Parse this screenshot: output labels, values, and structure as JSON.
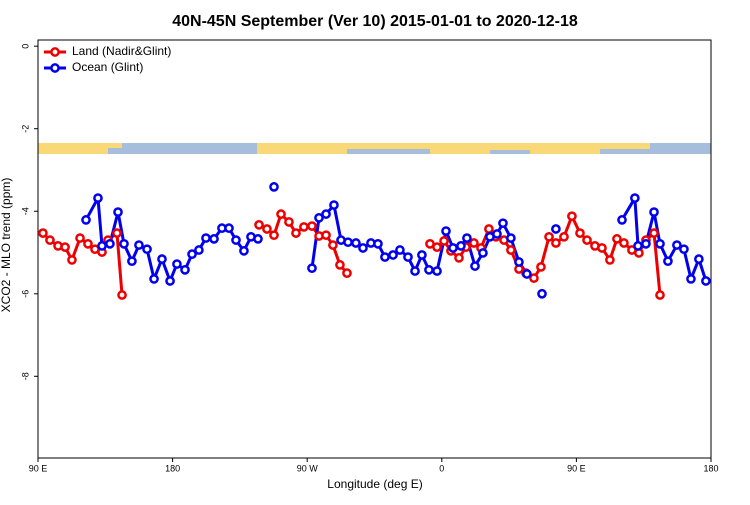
{
  "chart_data": {
    "type": "line",
    "title": "40N-45N September (Ver 10)   2015-01-01 to 2020-12-18",
    "x_label": "Longitude (deg E)",
    "y_label": "XCO2 - MLO trend (ppm)",
    "legend": "top-left",
    "xlim": [
      90,
      540
    ],
    "ylim": [
      -9.98,
      0.15
    ],
    "xticks": [
      {
        "value": 90,
        "label": "90 E"
      },
      {
        "value": 180,
        "label": "180"
      },
      {
        "value": 270,
        "label": "90 W"
      },
      {
        "value": 360,
        "label": "0"
      },
      {
        "value": 450,
        "label": "90 E"
      },
      {
        "value": 540,
        "label": "180"
      }
    ],
    "yticks": [
      0,
      -2,
      -4,
      -6,
      -8
    ],
    "series": [
      {
        "name": "Land (Nadir&Glint)",
        "color": "#ee0000",
        "x": [
          93.3,
          98.0,
          103.4,
          108.1,
          112.7,
          118.1,
          123.4,
          128.1,
          132.8,
          136.8,
          142.8,
          146.2,
          null,
          237.8,
          243.1,
          247.8,
          252.5,
          257.8,
          262.5,
          267.8,
          273.2,
          277.9,
          282.6,
          287.2,
          291.9,
          296.6,
          null,
          352.1,
          356.8,
          361.5,
          366.1,
          371.5,
          376.2,
          381.5,
          386.2,
          391.5,
          396.2,
          401.6,
          406.2,
          411.6,
          416.3,
          421.6,
          426.3,
          431.7,
          436.3,
          441.7,
          447.0,
          452.4,
          457.1,
          462.4,
          467.1,
          472.4,
          477.1,
          481.8,
          487.1,
          491.8,
          496.5,
          501.9,
          505.9
        ],
        "values": [
          -4.53,
          -4.7,
          -4.84,
          -4.87,
          -5.18,
          -4.65,
          -4.79,
          -4.92,
          -4.99,
          -4.7,
          -4.53,
          -6.03,
          null,
          -4.33,
          -4.43,
          -4.58,
          -4.07,
          -4.26,
          -4.53,
          -4.38,
          -4.36,
          -4.6,
          -4.58,
          -4.82,
          -5.3,
          -5.5,
          null,
          -4.79,
          -4.87,
          -4.72,
          -4.96,
          -5.13,
          -4.87,
          -4.77,
          -4.89,
          -4.43,
          -4.62,
          -4.7,
          -4.94,
          -5.4,
          -5.5,
          -5.62,
          -5.35,
          -4.62,
          -4.77,
          -4.62,
          -4.12,
          -4.53,
          -4.7,
          -4.84,
          -4.89,
          -5.18,
          -4.67,
          -4.77,
          -4.94,
          -5.01,
          -4.7,
          -4.53,
          -6.03
        ]
      },
      {
        "name": "Ocean (Glint)",
        "color": "#0000ee",
        "x": [
          122.1,
          130.1,
          132.8,
          138.1,
          143.5,
          147.5,
          152.8,
          157.5,
          162.9,
          167.6,
          172.9,
          178.3,
          182.9,
          188.3,
          193.0,
          197.6,
          202.3,
          207.7,
          213.0,
          217.7,
          222.4,
          227.7,
          232.4,
          237.1,
          null,
          247.8,
          null,
          273.2,
          277.9,
          282.6,
          287.9,
          292.6,
          297.3,
          302.6,
          307.3,
          312.6,
          317.3,
          322.0,
          327.4,
          332.0,
          337.4,
          342.1,
          346.7,
          351.4,
          356.8,
          362.8,
          367.5,
          372.8,
          376.8,
          382.2,
          387.5,
          392.2,
          396.9,
          400.9,
          406.2,
          411.6,
          416.9,
          null,
          427.0,
          null,
          436.3,
          null,
          480.5,
          489.1,
          491.2,
          496.5,
          501.9,
          505.9,
          511.2,
          517.2,
          521.9,
          526.6,
          531.9,
          536.6
        ],
        "values": [
          -4.21,
          -3.68,
          -4.84,
          -4.79,
          -4.02,
          -4.79,
          -5.21,
          -4.82,
          -4.92,
          -5.64,
          -5.16,
          -5.69,
          -5.28,
          -5.42,
          -5.04,
          -4.94,
          -4.65,
          -4.67,
          -4.41,
          -4.41,
          -4.7,
          -4.96,
          -4.62,
          -4.67,
          null,
          -3.41,
          null,
          -5.38,
          -4.16,
          -4.07,
          -3.85,
          -4.7,
          -4.75,
          -4.77,
          -4.89,
          -4.77,
          -4.79,
          -5.11,
          -5.06,
          -4.94,
          -5.11,
          -5.45,
          -5.06,
          -5.42,
          -5.45,
          -4.48,
          -4.89,
          -4.84,
          -4.65,
          -5.33,
          -5.01,
          -4.62,
          -4.55,
          -4.29,
          -4.65,
          -5.23,
          -5.52,
          null,
          -6.0,
          null,
          -4.43,
          null,
          -4.21,
          -3.68,
          -4.84,
          -4.79,
          -4.02,
          -4.79,
          -5.21,
          -4.82,
          -4.92,
          -5.64,
          -5.16,
          -5.69
        ]
      }
    ]
  }
}
